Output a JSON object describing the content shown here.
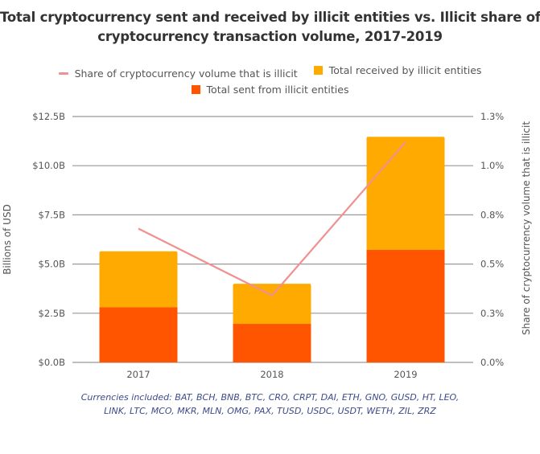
{
  "chart_data": {
    "type": "bar",
    "title": "Total cryptocurrency sent and received by illicit entities vs. Illicit share of all cryptocurrency transaction volume, 2017-2019",
    "title_lines": [
      "Total cryptocurrency sent and received by illicit entities vs. Illicit share of all",
      "cryptocurrency transaction volume, 2017-2019"
    ],
    "categories": [
      "2017",
      "2018",
      "2019"
    ],
    "stacked": true,
    "series": [
      {
        "name": "Total sent from illicit entities",
        "type": "bar",
        "axis": "left",
        "color": "#ff5500",
        "values": [
          2.8,
          1.96,
          5.72
        ]
      },
      {
        "name": "Total received by illicit entities",
        "type": "bar",
        "axis": "left",
        "color": "#ffaa00",
        "values": [
          2.85,
          2.04,
          5.75
        ]
      },
      {
        "name": "Share of cryptocurrency volume that is illicit",
        "type": "line",
        "axis": "right",
        "color": "#f09090",
        "values": [
          0.68,
          0.34,
          1.12
        ]
      }
    ],
    "legend": {
      "placement": "top",
      "rows": [
        [
          {
            "label": "Share of cryptocurrency volume that is illicit",
            "kind": "line",
            "color": "#f09090"
          },
          {
            "label": "Total received by illicit entities",
            "kind": "box",
            "color": "#ffaa00"
          }
        ],
        [
          {
            "label": "Total sent from illicit entities",
            "kind": "box",
            "color": "#ff5500"
          }
        ]
      ]
    },
    "ylabel": "Billions of USD",
    "ylim": [
      0,
      12.5
    ],
    "yticks": [
      0,
      2.5,
      5.0,
      7.5,
      10.0,
      12.5
    ],
    "ytick_labels": [
      "$0.0B",
      "$2.5B",
      "$5.0B",
      "$7.5B",
      "$10.0B",
      "$12.5B"
    ],
    "y2label": "Share of cryptocurrency volume that is illicit",
    "y2lim": [
      0,
      1.25
    ],
    "y2ticks": [
      0,
      0.25,
      0.5,
      0.75,
      1.0,
      1.25
    ],
    "y2tick_labels": [
      "0.0%",
      "0.3%",
      "0.5%",
      "0.8%",
      "1.0%",
      "1.3%"
    ],
    "xlabel": "",
    "grid": true,
    "footnote_lines": [
      "Currencies included: BAT, BCH, BNB, BTC, CRO, CRPT, DAI, ETH, GNO, GUSD, HT, LEO,",
      "LINK, LTC, MCO, MKR, MLN, OMG, PAX, TUSD, USDC, USDT, WETH, ZIL, ZRZ"
    ]
  },
  "colors": {
    "gridline": "#999999",
    "text": "#555555",
    "footnote": "#3d4b8a"
  }
}
